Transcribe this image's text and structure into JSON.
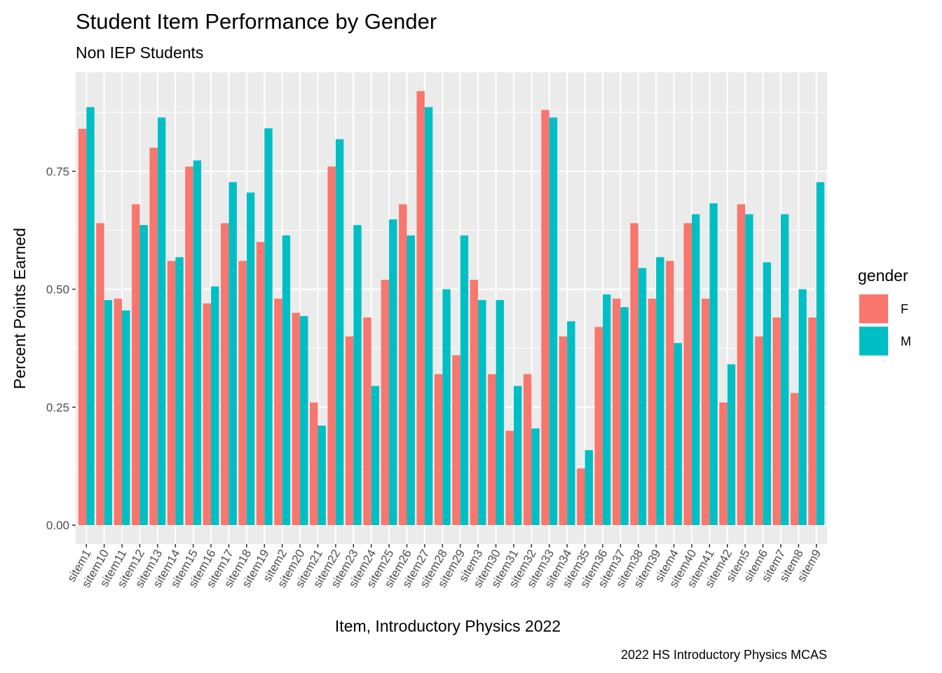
{
  "chart_data": {
    "type": "bar",
    "title": "Student Item Performance by Gender",
    "subtitle": "Non IEP Students",
    "xlabel": "Item, Introductory Physics 2022",
    "ylabel": "Percent Points Earned",
    "caption": "2022 HS Introductory Physics MCAS",
    "ylim": [
      -0.04,
      0.96
    ],
    "yticks": [
      "0.00",
      "0.25",
      "0.50",
      "0.75"
    ],
    "grid": true,
    "legend": {
      "title": "gender",
      "position": "right"
    },
    "categories": [
      "sitem1",
      "sitem10",
      "sitem11",
      "sitem12",
      "sitem13",
      "sitem14",
      "sitem15",
      "sitem16",
      "sitem17",
      "sitem18",
      "sitem19",
      "sitem2",
      "sitem20",
      "sitem21",
      "sitem22",
      "sitem23",
      "sitem24",
      "sitem25",
      "sitem26",
      "sitem27",
      "sitem28",
      "sitem29",
      "sitem3",
      "sitem30",
      "sitem31",
      "sitem32",
      "sitem33",
      "sitem34",
      "sitem35",
      "sitem36",
      "sitem37",
      "sitem38",
      "sitem39",
      "sitem4",
      "sitem40",
      "sitem41",
      "sitem42",
      "sitem5",
      "sitem6",
      "sitem7",
      "sitem8",
      "sitem9"
    ],
    "series": [
      {
        "name": "F",
        "color": "#F8766D",
        "values": [
          0.84,
          0.64,
          0.48,
          0.68,
          0.8,
          0.56,
          0.76,
          0.47,
          0.64,
          0.56,
          0.6,
          0.48,
          0.45,
          0.26,
          0.76,
          0.4,
          0.44,
          0.52,
          0.68,
          0.92,
          0.32,
          0.36,
          0.52,
          0.32,
          0.2,
          0.32,
          0.88,
          0.4,
          0.12,
          0.42,
          0.48,
          0.64,
          0.48,
          0.56,
          0.64,
          0.48,
          0.26,
          0.68,
          0.4,
          0.44,
          0.28,
          0.44
        ]
      },
      {
        "name": "M",
        "color": "#00BFC4",
        "values": [
          0.886,
          0.477,
          0.455,
          0.636,
          0.864,
          0.568,
          0.773,
          0.506,
          0.727,
          0.705,
          0.841,
          0.614,
          0.443,
          0.211,
          0.818,
          0.636,
          0.295,
          0.648,
          0.614,
          0.886,
          0.5,
          0.614,
          0.477,
          0.477,
          0.295,
          0.205,
          0.864,
          0.432,
          0.159,
          0.489,
          0.462,
          0.545,
          0.568,
          0.386,
          0.659,
          0.682,
          0.341,
          0.659,
          0.557,
          0.659,
          0.5,
          0.727
        ]
      }
    ]
  }
}
